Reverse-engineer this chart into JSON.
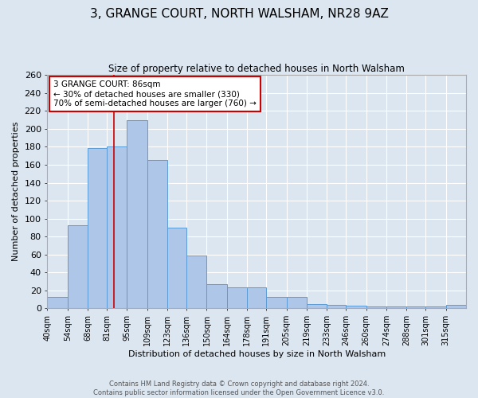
{
  "title": "3, GRANGE COURT, NORTH WALSHAM, NR28 9AZ",
  "subtitle": "Size of property relative to detached houses in North Walsham",
  "xlabel": "Distribution of detached houses by size in North Walsham",
  "ylabel": "Number of detached properties",
  "bar_labels": [
    "40sqm",
    "54sqm",
    "68sqm",
    "81sqm",
    "95sqm",
    "109sqm",
    "123sqm",
    "136sqm",
    "150sqm",
    "164sqm",
    "178sqm",
    "191sqm",
    "205sqm",
    "219sqm",
    "233sqm",
    "246sqm",
    "260sqm",
    "274sqm",
    "288sqm",
    "301sqm",
    "315sqm"
  ],
  "bar_values": [
    13,
    93,
    179,
    180,
    210,
    165,
    90,
    59,
    27,
    23,
    23,
    13,
    13,
    5,
    4,
    3,
    2,
    2,
    2,
    2,
    4
  ],
  "bar_color": "#aec6e8",
  "bar_edge_color": "#5b9bd5",
  "bg_color": "#dce6f1",
  "grid_color": "#ffffff",
  "property_line_label": "3 GRANGE COURT: 86sqm",
  "annotation_line2": "← 30% of detached houses are smaller (330)",
  "annotation_line3": "70% of semi-detached houses are larger (760) →",
  "box_color": "#ffffff",
  "box_edge_color": "#cc0000",
  "vline_color": "#cc0000",
  "ylim": [
    0,
    260
  ],
  "yticks": [
    0,
    20,
    40,
    60,
    80,
    100,
    120,
    140,
    160,
    180,
    200,
    220,
    240,
    260
  ],
  "footer1": "Contains HM Land Registry data © Crown copyright and database right 2024.",
  "footer2": "Contains public sector information licensed under the Open Government Licence v3.0.",
  "title_fontsize": 11,
  "subtitle_fontsize": 8.5,
  "xlabel_fontsize": 8,
  "ylabel_fontsize": 8,
  "bin_edges": [
    40,
    54,
    68,
    81,
    95,
    109,
    123,
    136,
    150,
    164,
    178,
    191,
    205,
    219,
    233,
    246,
    260,
    274,
    288,
    301,
    315,
    329
  ]
}
